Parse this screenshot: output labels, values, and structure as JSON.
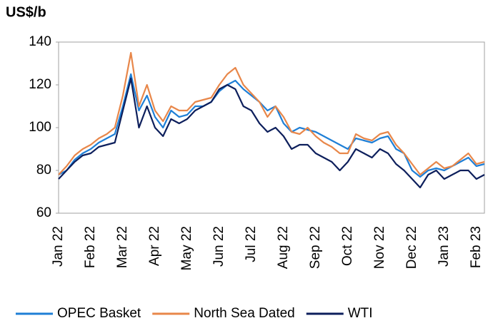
{
  "chart_data": {
    "type": "line",
    "title": "US$/b",
    "categories": [
      "Jan 22",
      null,
      null,
      null,
      "Feb 22",
      null,
      null,
      null,
      "Mar 22",
      null,
      null,
      null,
      "Apr 22",
      null,
      null,
      null,
      "May 22",
      null,
      null,
      null,
      "Jun 22",
      null,
      null,
      null,
      "Jul 22",
      null,
      null,
      null,
      "Aug 22",
      null,
      null,
      null,
      "Sep 22",
      null,
      null,
      null,
      "Oct 22",
      null,
      null,
      null,
      "Nov 22",
      null,
      null,
      null,
      "Dec 22",
      null,
      null,
      null,
      "Jan 23",
      null,
      null,
      null,
      "Feb 23",
      null
    ],
    "series": [
      {
        "name": "OPEC Basket",
        "color": "#1f7fd6",
        "values": [
          78,
          80,
          85,
          88,
          90,
          93,
          95,
          97,
          110,
          125,
          108,
          115,
          105,
          100,
          108,
          105,
          106,
          110,
          110,
          112,
          117,
          120,
          122,
          118,
          115,
          112,
          108,
          110,
          102,
          98,
          100,
          99,
          98,
          96,
          94,
          92,
          90,
          95,
          94,
          93,
          95,
          96,
          90,
          88,
          80,
          77,
          80,
          81,
          80,
          82,
          84,
          86,
          82,
          83
        ]
      },
      {
        "name": "North Sea Dated",
        "color": "#e8874a",
        "values": [
          78,
          82,
          87,
          90,
          92,
          95,
          97,
          100,
          115,
          135,
          110,
          120,
          108,
          103,
          110,
          108,
          108,
          112,
          113,
          114,
          120,
          125,
          128,
          120,
          116,
          112,
          105,
          110,
          105,
          98,
          97,
          100,
          96,
          93,
          91,
          88,
          88,
          97,
          95,
          94,
          97,
          98,
          92,
          88,
          83,
          78,
          81,
          84,
          81,
          82,
          85,
          88,
          83,
          84
        ]
      },
      {
        "name": "WTI",
        "color": "#0d1f5c",
        "values": [
          76,
          80,
          84,
          87,
          88,
          91,
          92,
          93,
          108,
          123,
          100,
          110,
          100,
          96,
          104,
          102,
          104,
          108,
          110,
          112,
          118,
          120,
          118,
          110,
          108,
          102,
          98,
          100,
          96,
          90,
          92,
          92,
          88,
          86,
          84,
          80,
          84,
          90,
          88,
          86,
          90,
          88,
          83,
          80,
          76,
          72,
          78,
          80,
          76,
          78,
          80,
          80,
          76,
          78
        ]
      }
    ],
    "ylim": [
      60,
      140
    ],
    "yticks": [
      60,
      80,
      100,
      120,
      140
    ],
    "grid": false
  }
}
